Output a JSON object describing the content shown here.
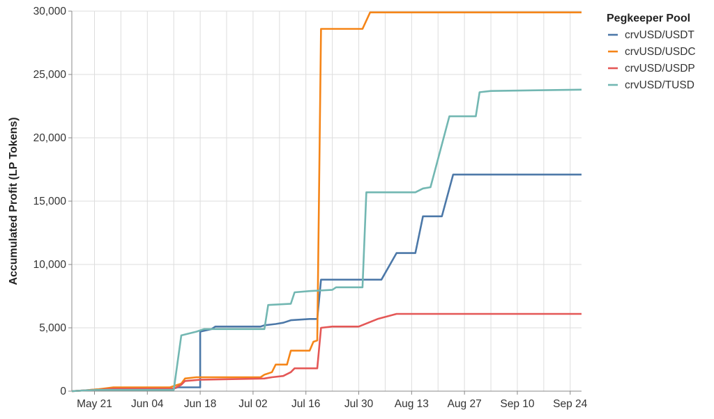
{
  "chart_data": {
    "type": "line",
    "title": "",
    "xlabel": "",
    "ylabel": "Accumulated Profit (LP Tokens)",
    "x_type": "date",
    "xlim": [
      "2023-05-15",
      "2023-09-27"
    ],
    "ylim": [
      0,
      30000
    ],
    "y_ticks": [
      0,
      5000,
      10000,
      15000,
      20000,
      25000,
      30000
    ],
    "y_tick_labels": [
      "0",
      "5,000",
      "10,000",
      "15,000",
      "20,000",
      "25,000",
      "30,000"
    ],
    "x_ticks": [
      "2023-05-21",
      "2023-06-04",
      "2023-06-18",
      "2023-07-02",
      "2023-07-16",
      "2023-07-30",
      "2023-08-13",
      "2023-08-27",
      "2023-09-10",
      "2023-09-24"
    ],
    "x_tick_labels": [
      "May 21",
      "Jun 04",
      "Jun 18",
      "Jul 02",
      "Jul 16",
      "Jul 30",
      "Aug 13",
      "Aug 27",
      "Sep 10",
      "Sep 24"
    ],
    "grid": true,
    "legend": {
      "title": "Pegkeeper Pool",
      "position": "right"
    },
    "series": [
      {
        "name": "crvUSD/USDT",
        "color": "#4c78a8",
        "points": [
          [
            "2023-05-15",
            0
          ],
          [
            "2023-05-18",
            50
          ],
          [
            "2023-05-22",
            150
          ],
          [
            "2023-05-26",
            200
          ],
          [
            "2023-06-04",
            200
          ],
          [
            "2023-06-11",
            200
          ],
          [
            "2023-06-12",
            300
          ],
          [
            "2023-06-18",
            300
          ],
          [
            "2023-06-18",
            4700
          ],
          [
            "2023-06-21",
            4900
          ],
          [
            "2023-06-22",
            5100
          ],
          [
            "2023-07-04",
            5100
          ],
          [
            "2023-07-05",
            5200
          ],
          [
            "2023-07-08",
            5300
          ],
          [
            "2023-07-10",
            5400
          ],
          [
            "2023-07-12",
            5600
          ],
          [
            "2023-07-17",
            5700
          ],
          [
            "2023-07-19",
            5700
          ],
          [
            "2023-07-20",
            8800
          ],
          [
            "2023-08-05",
            8800
          ],
          [
            "2023-08-09",
            10900
          ],
          [
            "2023-08-14",
            10900
          ],
          [
            "2023-08-16",
            13800
          ],
          [
            "2023-08-21",
            13800
          ],
          [
            "2023-08-24",
            17100
          ],
          [
            "2023-09-27",
            17100
          ]
        ]
      },
      {
        "name": "crvUSD/USDC",
        "color": "#f58518",
        "points": [
          [
            "2023-05-15",
            0
          ],
          [
            "2023-05-18",
            50
          ],
          [
            "2023-05-22",
            150
          ],
          [
            "2023-05-26",
            300
          ],
          [
            "2023-06-10",
            300
          ],
          [
            "2023-06-13",
            600
          ],
          [
            "2023-06-14",
            1000
          ],
          [
            "2023-06-17",
            1100
          ],
          [
            "2023-07-04",
            1100
          ],
          [
            "2023-07-05",
            1300
          ],
          [
            "2023-07-07",
            1500
          ],
          [
            "2023-07-08",
            2100
          ],
          [
            "2023-07-11",
            2100
          ],
          [
            "2023-07-12",
            3200
          ],
          [
            "2023-07-17",
            3200
          ],
          [
            "2023-07-18",
            3900
          ],
          [
            "2023-07-19",
            4000
          ],
          [
            "2023-07-20",
            28600
          ],
          [
            "2023-07-31",
            28600
          ],
          [
            "2023-08-02",
            29900
          ],
          [
            "2023-09-27",
            29900
          ]
        ]
      },
      {
        "name": "crvUSD/USDP",
        "color": "#e45756",
        "points": [
          [
            "2023-05-15",
            0
          ],
          [
            "2023-05-18",
            50
          ],
          [
            "2023-05-22",
            100
          ],
          [
            "2023-05-26",
            200
          ],
          [
            "2023-06-11",
            200
          ],
          [
            "2023-06-13",
            500
          ],
          [
            "2023-06-14",
            800
          ],
          [
            "2023-06-18",
            900
          ],
          [
            "2023-07-05",
            1000
          ],
          [
            "2023-07-07",
            1100
          ],
          [
            "2023-07-10",
            1200
          ],
          [
            "2023-07-12",
            1500
          ],
          [
            "2023-07-13",
            1800
          ],
          [
            "2023-07-19",
            1800
          ],
          [
            "2023-07-20",
            5000
          ],
          [
            "2023-07-23",
            5100
          ],
          [
            "2023-07-30",
            5100
          ],
          [
            "2023-08-04",
            5700
          ],
          [
            "2023-08-09",
            6100
          ],
          [
            "2023-09-27",
            6100
          ]
        ]
      },
      {
        "name": "crvUSD/TUSD",
        "color": "#72b7b2",
        "points": [
          [
            "2023-05-15",
            0
          ],
          [
            "2023-05-18",
            50
          ],
          [
            "2023-05-22",
            100
          ],
          [
            "2023-06-11",
            100
          ],
          [
            "2023-06-13",
            4400
          ],
          [
            "2023-06-17",
            4700
          ],
          [
            "2023-06-19",
            4900
          ],
          [
            "2023-07-05",
            4900
          ],
          [
            "2023-07-06",
            6800
          ],
          [
            "2023-07-12",
            6900
          ],
          [
            "2023-07-13",
            7800
          ],
          [
            "2023-07-17",
            7900
          ],
          [
            "2023-07-23",
            8000
          ],
          [
            "2023-07-24",
            8200
          ],
          [
            "2023-07-31",
            8200
          ],
          [
            "2023-08-01",
            15700
          ],
          [
            "2023-08-14",
            15700
          ],
          [
            "2023-08-16",
            16000
          ],
          [
            "2023-08-18",
            16100
          ],
          [
            "2023-08-23",
            21700
          ],
          [
            "2023-08-30",
            21700
          ],
          [
            "2023-08-31",
            23600
          ],
          [
            "2023-09-03",
            23700
          ],
          [
            "2023-09-27",
            23800
          ]
        ]
      }
    ]
  }
}
